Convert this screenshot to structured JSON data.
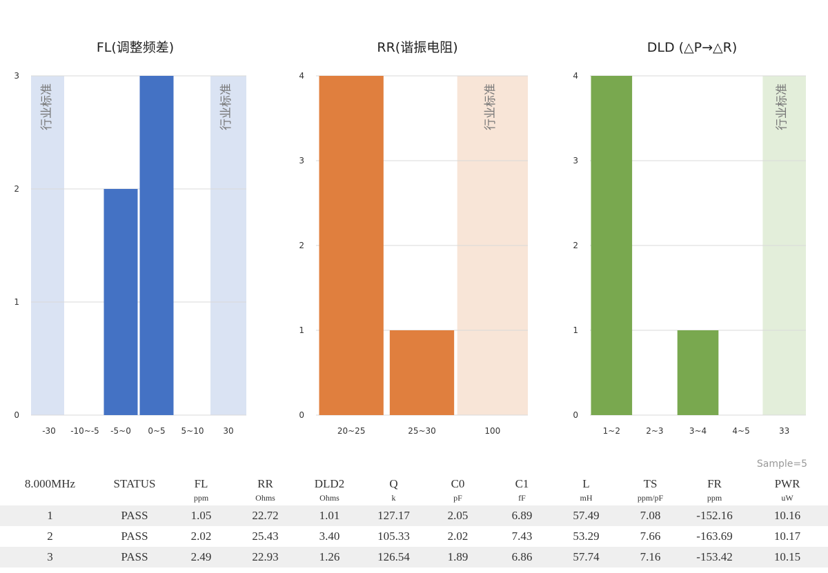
{
  "chart_data": [
    {
      "type": "bar",
      "title": "FL(调整频差)",
      "categories": [
        "-30",
        "-10~-5",
        "-5~0",
        "0~5",
        "5~10",
        "30"
      ],
      "values": [
        0,
        0,
        2,
        3,
        0,
        0
      ],
      "bands": [
        "-30",
        "30"
      ],
      "band_label": "行业标准",
      "ylim": [
        0,
        3
      ],
      "yticks": [
        "0",
        "1",
        "2",
        "3"
      ],
      "color": "#4472C4",
      "band_color": "#DAE3F3",
      "grid": true
    },
    {
      "type": "bar",
      "title": "RR(谐振电阻)",
      "categories": [
        "20~25",
        "25~30",
        "100"
      ],
      "values": [
        4,
        1,
        0
      ],
      "bands": [
        "100"
      ],
      "band_label": "行业标准",
      "ylim": [
        0,
        4
      ],
      "yticks": [
        "0",
        "1",
        "2",
        "3",
        "4"
      ],
      "color": "#E07F3E",
      "band_color": "#F8E5D7",
      "grid": true
    },
    {
      "type": "bar",
      "title": "DLD (△P→△R)",
      "categories": [
        "1~2",
        "2~3",
        "3~4",
        "4~5",
        "33"
      ],
      "values": [
        4,
        0,
        1,
        0,
        0
      ],
      "bands": [
        "33"
      ],
      "band_label": "行业标准",
      "ylim": [
        0,
        4
      ],
      "yticks": [
        "0",
        "1",
        "2",
        "3",
        "4"
      ],
      "color": "#79A84F",
      "band_color": "#E3EEDA",
      "grid": true
    }
  ],
  "sample_note": "Sample=5",
  "table": {
    "headers": [
      {
        "name": "8.000MHz",
        "unit": ""
      },
      {
        "name": "STATUS",
        "unit": ""
      },
      {
        "name": "FL",
        "unit": "ppm"
      },
      {
        "name": "RR",
        "unit": "Ohms"
      },
      {
        "name": "DLD2",
        "unit": "Ohms"
      },
      {
        "name": "Q",
        "unit": "k"
      },
      {
        "name": "C0",
        "unit": "pF"
      },
      {
        "name": "C1",
        "unit": "fF"
      },
      {
        "name": "L",
        "unit": "mH"
      },
      {
        "name": "TS",
        "unit": "ppm/pF"
      },
      {
        "name": "FR",
        "unit": "ppm"
      },
      {
        "name": "PWR",
        "unit": "uW"
      }
    ],
    "rows": [
      [
        "1",
        "PASS",
        "1.05",
        "22.72",
        "1.01",
        "127.17",
        "2.05",
        "6.89",
        "57.49",
        "7.08",
        "-152.16",
        "10.16"
      ],
      [
        "2",
        "PASS",
        "2.02",
        "25.43",
        "3.40",
        "105.33",
        "2.02",
        "7.43",
        "53.29",
        "7.66",
        "-163.69",
        "10.17"
      ],
      [
        "3",
        "PASS",
        "2.49",
        "22.93",
        "1.26",
        "126.54",
        "1.89",
        "6.86",
        "57.74",
        "7.16",
        "-153.42",
        "10.15"
      ]
    ]
  }
}
